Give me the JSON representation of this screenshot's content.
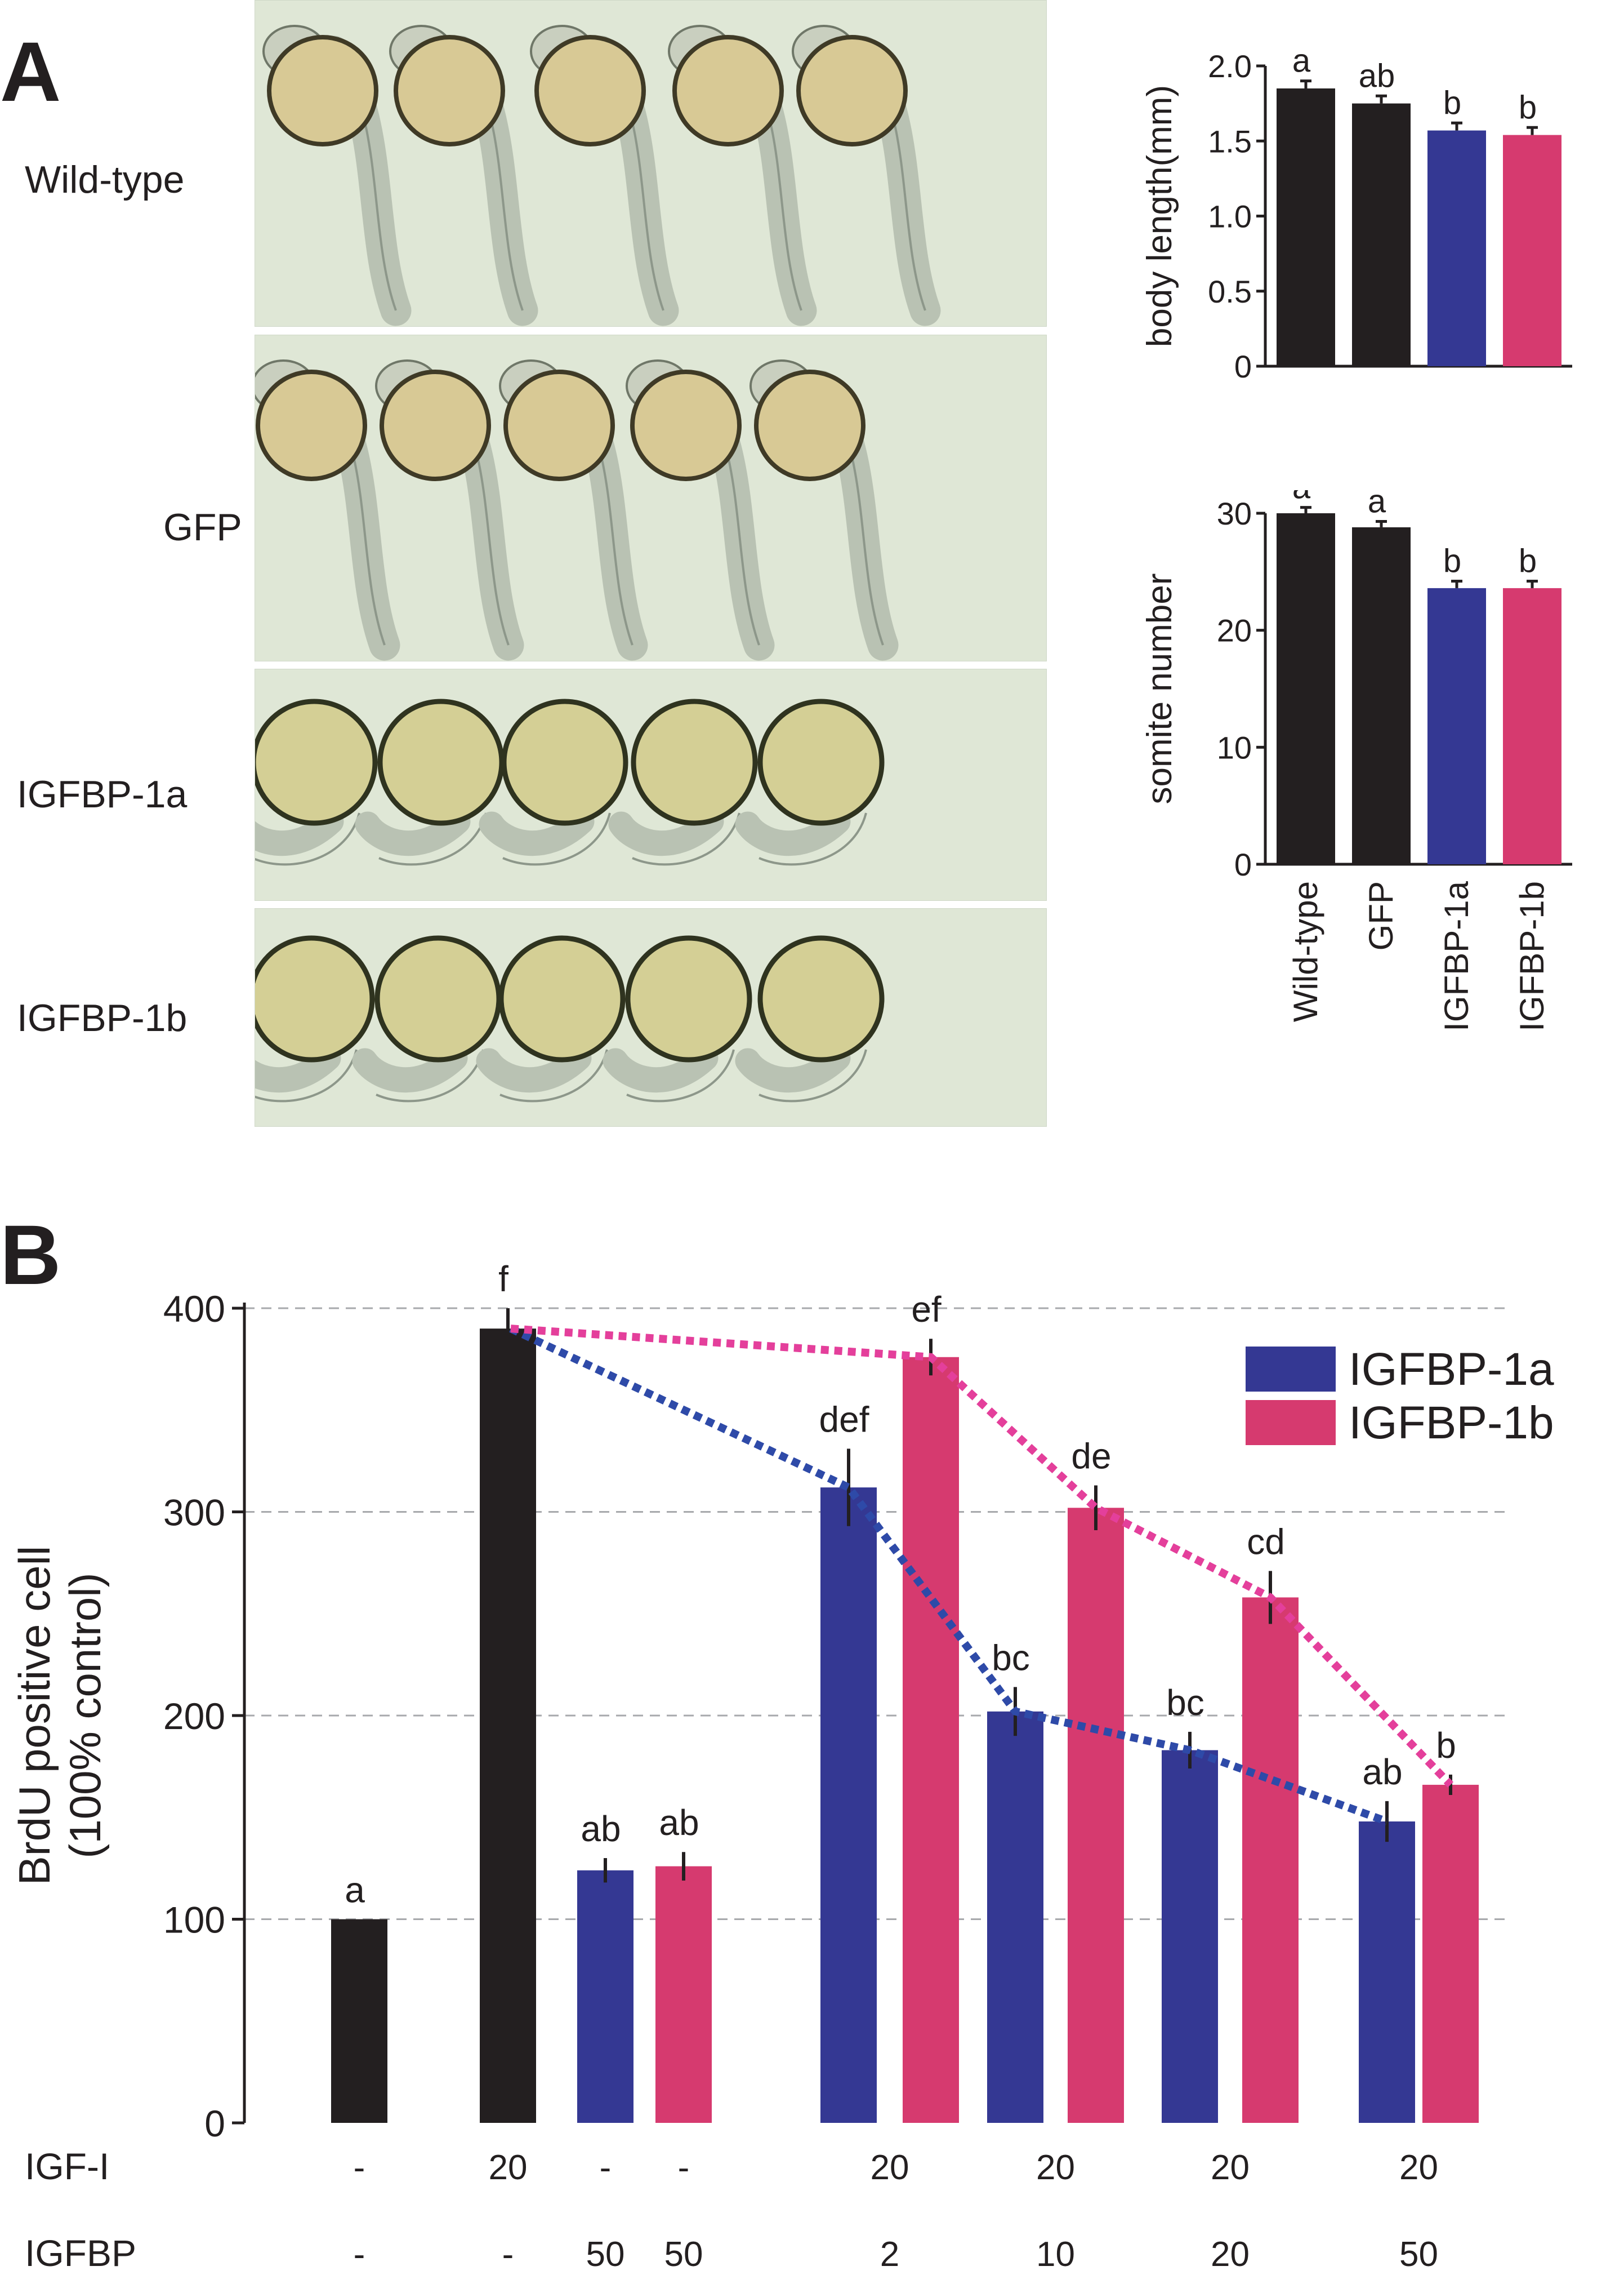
{
  "panel_a": {
    "letter": "A",
    "rows": [
      {
        "label": "Wild-type",
        "phenotype": "elongated"
      },
      {
        "label": "GFP",
        "phenotype": "elongated"
      },
      {
        "label": "IGFBP-1a",
        "phenotype": "short"
      },
      {
        "label": "IGFBP-1b",
        "phenotype": "short"
      }
    ]
  },
  "panel_b": {
    "letter": "B",
    "row_labels": {
      "igf": "IGF-I",
      "igfbp": "IGFBP"
    }
  },
  "colors": {
    "black": "#231f20",
    "igfbp1a": "#343893",
    "igfbp1b": "#d63a6f",
    "line1a": "#2e4aa8",
    "line1b": "#e43f9b",
    "grid": "#a7a9ac",
    "photo_bg": "#dfe7d6"
  },
  "chart_data": [
    {
      "type": "bar",
      "id": "body-length",
      "ylabel": "body length(mm)",
      "ylim": [
        0,
        2.0
      ],
      "yticks": [
        "0",
        "0.5",
        "1.0",
        "1.5",
        "2.0"
      ],
      "categories": [
        "Wild-type",
        "GFP",
        "IGFBP-1a",
        "IGFBP-1b"
      ],
      "values": [
        1.85,
        1.75,
        1.57,
        1.54
      ],
      "errors": [
        0.05,
        0.05,
        0.05,
        0.05
      ],
      "letters": [
        "a",
        "ab",
        "b",
        "b"
      ],
      "bar_colors": [
        "black",
        "black",
        "igfbp1a",
        "igfbp1b"
      ]
    },
    {
      "type": "bar",
      "id": "somite-number",
      "ylabel": "somite number",
      "ylim": [
        0,
        30
      ],
      "yticks": [
        "0",
        "10",
        "20",
        "30"
      ],
      "categories": [
        "Wild-type",
        "GFP",
        "IGFBP-1a",
        "IGFBP-1b"
      ],
      "values": [
        30.0,
        28.8,
        23.6,
        23.6
      ],
      "errors": [
        0.5,
        0.5,
        0.6,
        0.6
      ],
      "letters": [
        "a",
        "a",
        "b",
        "b"
      ],
      "bar_colors": [
        "black",
        "black",
        "igfbp1a",
        "igfbp1b"
      ]
    },
    {
      "type": "bar",
      "id": "brdu",
      "ylabel_lines": [
        "BrdU positive cell",
        "(100% control)"
      ],
      "ylim": [
        0,
        400
      ],
      "yticks": [
        "0",
        "100",
        "200",
        "300",
        "400"
      ],
      "grid": true,
      "legend": {
        "position": "top-right",
        "entries": [
          {
            "name": "IGFBP-1a",
            "color": "igfbp1a"
          },
          {
            "name": "IGFBP-1b",
            "color": "igfbp1b"
          }
        ]
      },
      "groups": [
        {
          "igf": "-",
          "igfbp": "-",
          "bars": [
            {
              "series": "control",
              "value": 100,
              "error": 0,
              "letter": "a"
            }
          ]
        },
        {
          "igf": "20",
          "igfbp": "-",
          "bars": [
            {
              "series": "control",
              "value": 390,
              "error": 10,
              "letter": "f"
            }
          ]
        },
        {
          "igf": "-",
          "igfbp": "50",
          "bars": [
            {
              "series": "IGFBP-1a",
              "value": 124,
              "error": 6,
              "letter": "ab"
            }
          ]
        },
        {
          "igf": "-",
          "igfbp": "50",
          "bars": [
            {
              "series": "IGFBP-1b",
              "value": 126,
              "error": 7,
              "letter": "ab"
            }
          ]
        },
        {
          "igf": "20",
          "igfbp": "2",
          "bars": [
            {
              "series": "IGFBP-1a",
              "value": 312,
              "error": 19,
              "letter": "def"
            },
            {
              "series": "IGFBP-1b",
              "value": 376,
              "error": 9,
              "letter": "ef"
            }
          ]
        },
        {
          "igf": "20",
          "igfbp": "10",
          "bars": [
            {
              "series": "IGFBP-1a",
              "value": 202,
              "error": 12,
              "letter": "bc"
            },
            {
              "series": "IGFBP-1b",
              "value": 302,
              "error": 11,
              "letter": "de"
            }
          ]
        },
        {
          "igf": "20",
          "igfbp": "20",
          "bars": [
            {
              "series": "IGFBP-1a",
              "value": 183,
              "error": 9,
              "letter": "bc"
            },
            {
              "series": "IGFBP-1b",
              "value": 258,
              "error": 13,
              "letter": "cd"
            }
          ]
        },
        {
          "igf": "20",
          "igfbp": "50",
          "bars": [
            {
              "series": "IGFBP-1a",
              "value": 148,
              "error": 10,
              "letter": "ab"
            },
            {
              "series": "IGFBP-1b",
              "value": 166,
              "error": 5,
              "letter": "b"
            }
          ]
        }
      ],
      "trend_lines": [
        {
          "series": "IGFBP-1a",
          "points": [
            390,
            312,
            202,
            183,
            148
          ]
        },
        {
          "series": "IGFBP-1b",
          "points": [
            390,
            376,
            302,
            258,
            166
          ]
        }
      ]
    }
  ]
}
